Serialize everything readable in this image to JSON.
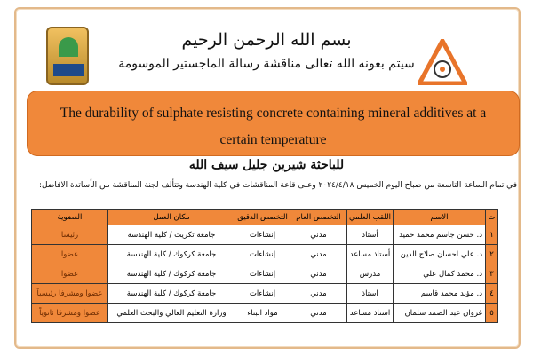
{
  "header": {
    "basmala": "بسم الله الرحمن الرحيم",
    "intro": "سيتم بعونه الله تعالى مناقشة رسالة الماجستير الموسومة",
    "title": "The durability of sulphate resisting concrete containing mineral additives at a certain temperature",
    "researcher": "للباحثة شيرين جليل سيف الله",
    "details": "في تمام الساعة التاسعة من صباح اليوم الخميس ٢٠٢٤/٤/١٨ وعلى قاعة المناقشات في كلية الهندسة وتتألف لجنة المناقشة من الأساتذة الافاضل:"
  },
  "colors": {
    "accent": "#f0883a",
    "frame": "#e3b98a"
  },
  "table": {
    "headers": [
      "ت",
      "الاسم",
      "اللقب العلمي",
      "التخصص العام",
      "التخصص الدقيق",
      "مكان العمل",
      "العضوية"
    ],
    "rows": [
      [
        "١",
        "د. حسن جاسم محمد حميد",
        "أستاذ",
        "مدني",
        "إنشاءات",
        "جامعة تكريت / كلية الهندسة",
        "رئيسا"
      ],
      [
        "٢",
        "د. علي احسان صلاح الدين",
        "أستاذ مساعد",
        "مدني",
        "إنشاءات",
        "جامعة كركوك / كلية الهندسة",
        "عضوا"
      ],
      [
        "٣",
        "د. محمد كمال علي",
        "مدرس",
        "مدني",
        "إنشاءات",
        "جامعة كركوك / كلية الهندسة",
        "عضوا"
      ],
      [
        "٤",
        "د. مؤيد محمد قاسم",
        "استاذ",
        "مدني",
        "إنشاءات",
        "جامعة كركوك / كلية الهندسة",
        "عضوا ومشرفا رئيسياً"
      ],
      [
        "٥",
        "غزوان عبد الصمد سلمان",
        "استاذ مساعد",
        "مدني",
        "مواد البناء",
        "وزارة التعليم العالي والبحث العلمي",
        "عضوا ومشرفا ثانوياً"
      ]
    ]
  }
}
